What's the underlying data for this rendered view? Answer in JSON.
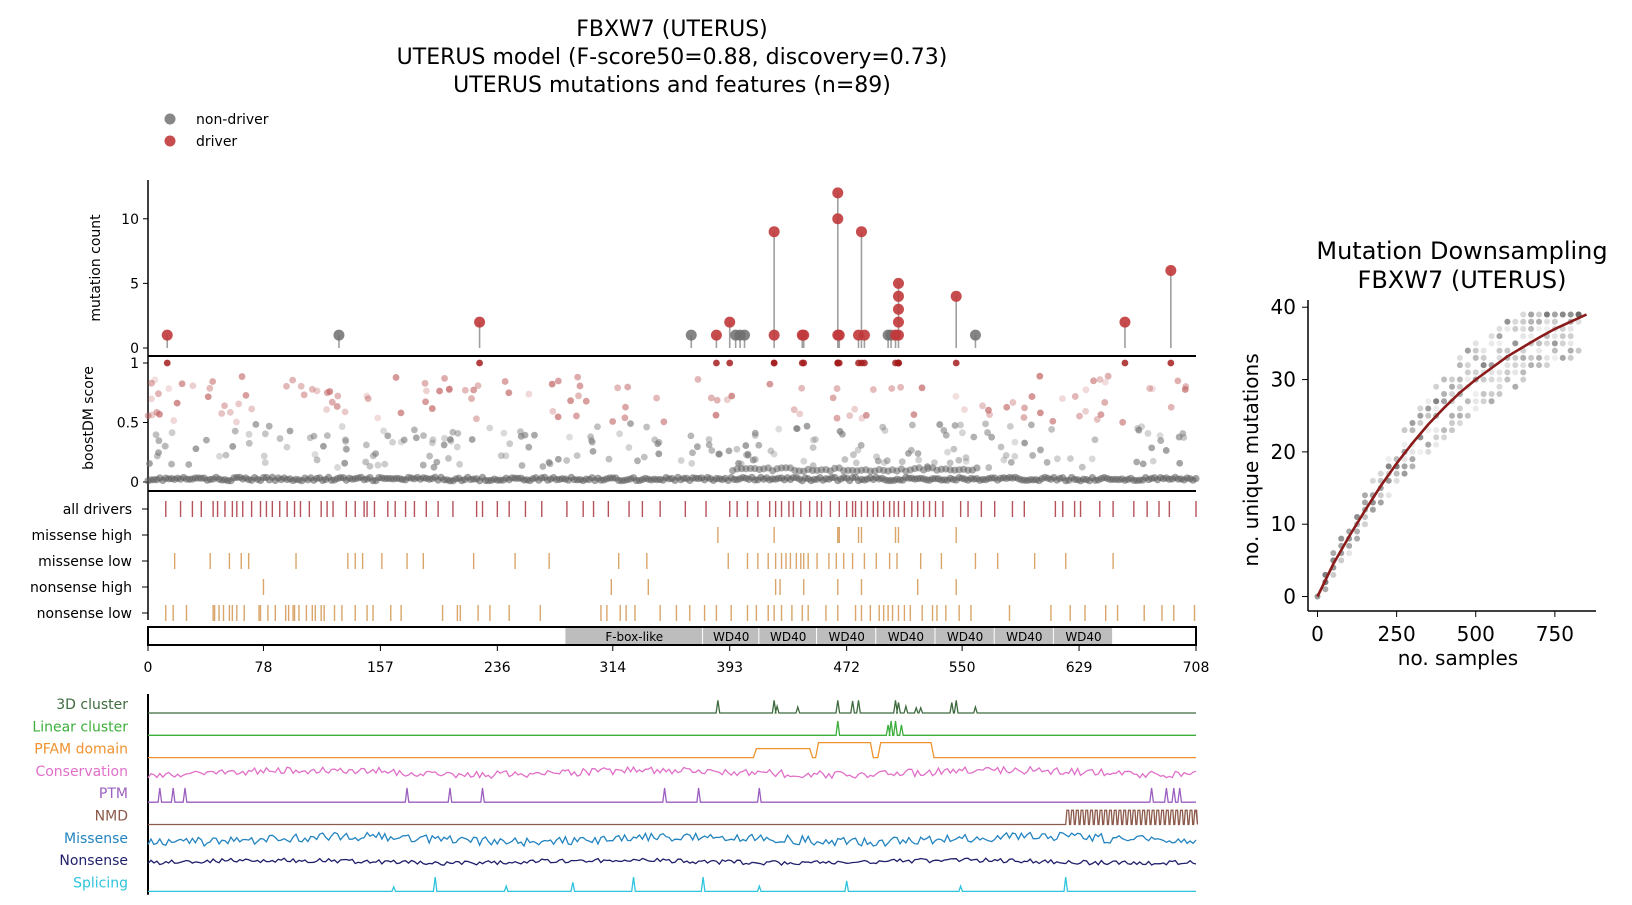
{
  "title_lines": [
    "FBXW7 (UTERUS)",
    "UTERUS model (F-score50=0.88, discovery=0.73)",
    "UTERUS mutations and features (n=89)"
  ],
  "legend": [
    {
      "label": "non-driver",
      "color": "#7a7a7a"
    },
    {
      "label": "driver",
      "color": "#c0393b"
    }
  ],
  "colors": {
    "driver": "#c0393b",
    "nondriver": "#6e6e6e",
    "track_driver": "#b5525a",
    "track_feature": "#d9a56a",
    "domain_fill": "#bdbdbd"
  },
  "chart_data": [
    {
      "type": "scatter",
      "name": "lollipop",
      "ylabel": "mutation count",
      "ylim": [
        0,
        13
      ],
      "yticks": [
        0,
        5,
        10
      ],
      "xlim": [
        0,
        708
      ],
      "drivers": [
        [
          13,
          1
        ],
        [
          224,
          2
        ],
        [
          384,
          1
        ],
        [
          393,
          2
        ],
        [
          423,
          9
        ],
        [
          423,
          1
        ],
        [
          442,
          1
        ],
        [
          443,
          1
        ],
        [
          466,
          12
        ],
        [
          466,
          10
        ],
        [
          466,
          1
        ],
        [
          467,
          1
        ],
        [
          480,
          1
        ],
        [
          482,
          9
        ],
        [
          484,
          1
        ],
        [
          505,
          1
        ],
        [
          507,
          2
        ],
        [
          507,
          3
        ],
        [
          507,
          4
        ],
        [
          507,
          5
        ],
        [
          507,
          1
        ],
        [
          546,
          4
        ],
        [
          660,
          2
        ],
        [
          691,
          6
        ]
      ],
      "nondrivers": [
        [
          129,
          1
        ],
        [
          367,
          1
        ],
        [
          397,
          1
        ],
        [
          400,
          1
        ],
        [
          403,
          1
        ],
        [
          500,
          1
        ],
        [
          502,
          1
        ],
        [
          559,
          1
        ]
      ]
    },
    {
      "type": "scatter",
      "name": "boostdm",
      "ylabel": "boostDM score",
      "ylim": [
        0,
        1
      ],
      "yticks": [
        0,
        0.5,
        1
      ]
    },
    {
      "type": "table",
      "name": "tracks",
      "rows": [
        {
          "label": "all drivers",
          "color": "#b5525a",
          "positions": [
            12,
            22,
            30,
            36,
            44,
            47,
            52,
            57,
            60,
            64,
            70,
            76,
            80,
            84,
            89,
            94,
            99,
            103,
            109,
            117,
            121,
            125,
            134,
            140,
            146,
            148,
            153,
            162,
            167,
            174,
            180,
            188,
            196,
            206,
            222,
            226,
            236,
            244,
            255,
            266,
            283,
            294,
            301,
            311,
            325,
            334,
            346,
            363,
            377,
            393,
            398,
            405,
            412,
            420,
            424,
            428,
            433,
            436,
            441,
            447,
            452,
            455,
            461,
            467,
            472,
            476,
            478,
            482,
            486,
            490,
            493,
            497,
            501,
            504,
            507,
            511,
            516,
            520,
            524,
            528,
            532,
            537,
            549,
            554,
            563,
            572,
            584,
            592,
            613,
            618,
            626,
            630,
            643,
            652,
            666,
            675,
            683,
            690,
            708
          ]
        },
        {
          "label": "missense high",
          "color": "#d9a56a",
          "positions": [
            385,
            423,
            466,
            467,
            480,
            482,
            505,
            507,
            546
          ]
        },
        {
          "label": "missense low",
          "color": "#d9a56a",
          "positions": [
            18,
            42,
            55,
            63,
            68,
            100,
            135,
            140,
            145,
            158,
            175,
            186,
            220,
            248,
            271,
            318,
            337,
            392,
            405,
            412,
            419,
            424,
            428,
            431,
            434,
            438,
            441,
            443,
            446,
            452,
            460,
            465,
            470,
            476,
            484,
            492,
            501,
            506,
            522,
            536,
            559,
            574,
            599,
            620,
            652
          ]
        },
        {
          "label": "nonsense high",
          "color": "#d9a56a",
          "positions": [
            78,
            313,
            338,
            424,
            427,
            443,
            466,
            482,
            520,
            546
          ]
        },
        {
          "label": "nonsense low",
          "color": "#d9a56a",
          "positions": [
            12,
            17,
            26,
            44,
            45,
            48,
            51,
            55,
            57,
            60,
            65,
            75,
            76,
            81,
            86,
            93,
            95,
            98,
            99,
            102,
            107,
            111,
            113,
            117,
            119,
            126,
            131,
            140,
            148,
            152,
            164,
            171,
            199,
            209,
            211,
            223,
            231,
            244,
            265,
            306,
            310,
            319,
            323,
            329,
            346,
            357,
            366,
            376,
            384,
            394,
            405,
            411,
            419,
            423,
            428,
            435,
            442,
            446,
            458,
            466,
            478,
            482,
            488,
            494,
            497,
            500,
            503,
            507,
            511,
            515,
            523,
            530,
            533,
            539,
            548,
            556,
            582,
            610,
            623,
            633,
            647,
            655,
            673,
            685,
            693,
            707
          ]
        }
      ]
    },
    {
      "type": "table",
      "name": "domains",
      "xticks": [
        0,
        78,
        157,
        236,
        314,
        393,
        472,
        550,
        629,
        708
      ],
      "xlim": [
        0,
        708
      ],
      "domains": [
        {
          "label": "F-box-like",
          "start": 282,
          "end": 375
        },
        {
          "label": "WD40",
          "start": 375,
          "end": 413
        },
        {
          "label": "WD40",
          "start": 413,
          "end": 452
        },
        {
          "label": "WD40",
          "start": 452,
          "end": 492
        },
        {
          "label": "WD40",
          "start": 492,
          "end": 532
        },
        {
          "label": "WD40",
          "start": 532,
          "end": 572
        },
        {
          "label": "WD40",
          "start": 572,
          "end": 612
        },
        {
          "label": "WD40",
          "start": 612,
          "end": 652
        }
      ]
    },
    {
      "type": "line",
      "name": "features",
      "rows": [
        {
          "label": "3D cluster",
          "color": "#3e6b3e",
          "kind": "spikes",
          "peaks": [
            [
              385,
              0.85
            ],
            [
              423,
              0.85
            ],
            [
              425,
              0.45
            ],
            [
              439,
              0.4
            ],
            [
              466,
              0.85
            ],
            [
              476,
              0.8
            ],
            [
              480,
              0.85
            ],
            [
              505,
              0.85
            ],
            [
              507,
              0.7
            ],
            [
              512,
              0.45
            ],
            [
              519,
              0.35
            ],
            [
              522,
              0.35
            ],
            [
              543,
              0.7
            ],
            [
              546,
              0.85
            ],
            [
              559,
              0.4
            ]
          ]
        },
        {
          "label": "Linear cluster",
          "color": "#3cae3c",
          "kind": "spikes",
          "peaks": [
            [
              466,
              0.95
            ],
            [
              500,
              0.7
            ],
            [
              502,
              0.95
            ],
            [
              505,
              0.95
            ],
            [
              509,
              0.7
            ]
          ]
        },
        {
          "label": "PFAM domain",
          "color": "#f0922e",
          "kind": "steps",
          "steps": [
            [
              0,
              0.0
            ],
            [
              409,
              0.0
            ],
            [
              411,
              0.6
            ],
            [
              447,
              0.6
            ],
            [
              449,
              0.0
            ],
            [
              451,
              0.0
            ],
            [
              453,
              1.0
            ],
            [
              488,
              1.0
            ],
            [
              490,
              0.0
            ],
            [
              493,
              0.0
            ],
            [
              495,
              1.0
            ],
            [
              529,
              1.0
            ],
            [
              531,
              0.0
            ],
            [
              708,
              0.0
            ]
          ]
        },
        {
          "label": "Conservation",
          "color": "#e070c8",
          "kind": "noise",
          "seed": 11,
          "amp": 0.25
        },
        {
          "label": "PTM",
          "color": "#9b5fc0",
          "kind": "spikes",
          "peaks": [
            [
              8,
              0.95
            ],
            [
              17,
              0.95
            ],
            [
              25,
              0.95
            ],
            [
              175,
              0.95
            ],
            [
              204,
              0.95
            ],
            [
              226,
              0.95
            ],
            [
              349,
              0.95
            ],
            [
              372,
              0.95
            ],
            [
              413,
              0.95
            ],
            [
              678,
              0.95
            ],
            [
              688,
              0.95
            ],
            [
              693,
              0.95
            ],
            [
              697,
              0.95
            ]
          ]
        },
        {
          "label": "NMD",
          "color": "#8c5a4a",
          "kind": "nmd",
          "start": 620,
          "end": 708
        },
        {
          "label": "Missense",
          "color": "#2384c0",
          "kind": "noise",
          "seed": 23,
          "amp": 0.3
        },
        {
          "label": "Nonsense",
          "color": "#1f1f6b",
          "kind": "noise",
          "seed": 37,
          "amp": 0.15
        },
        {
          "label": "Splicing",
          "color": "#2ec4de",
          "kind": "spikes",
          "peaks": [
            [
              166,
              0.3
            ],
            [
              194,
              0.95
            ],
            [
              242,
              0.35
            ],
            [
              287,
              0.6
            ],
            [
              328,
              0.95
            ],
            [
              375,
              0.95
            ],
            [
              413,
              0.35
            ],
            [
              472,
              0.7
            ],
            [
              549,
              0.35
            ],
            [
              620,
              0.95
            ]
          ]
        }
      ]
    },
    {
      "type": "scatter",
      "name": "downsampling",
      "title_lines": [
        "Mutation Downsampling",
        "FBXW7 (UTERUS)"
      ],
      "xlabel": "no. samples",
      "ylabel": "no. unique mutations",
      "xlim": [
        -30,
        880
      ],
      "ylim": [
        -2,
        41
      ],
      "xticks": [
        0,
        250,
        500,
        750
      ],
      "yticks": [
        0,
        10,
        20,
        30,
        40
      ],
      "curve": [
        [
          0,
          0
        ],
        [
          50,
          4.5
        ],
        [
          100,
          8.3
        ],
        [
          150,
          11.9
        ],
        [
          200,
          15.3
        ],
        [
          250,
          18.4
        ],
        [
          300,
          21.2
        ],
        [
          350,
          23.8
        ],
        [
          400,
          26.1
        ],
        [
          450,
          28.2
        ],
        [
          500,
          30.0
        ],
        [
          550,
          31.6
        ],
        [
          600,
          33.2
        ],
        [
          650,
          34.5
        ],
        [
          700,
          35.8
        ],
        [
          750,
          37.0
        ],
        [
          800,
          38.0
        ],
        [
          850,
          39.0
        ]
      ],
      "curve_color": "#8b1a1a"
    }
  ]
}
